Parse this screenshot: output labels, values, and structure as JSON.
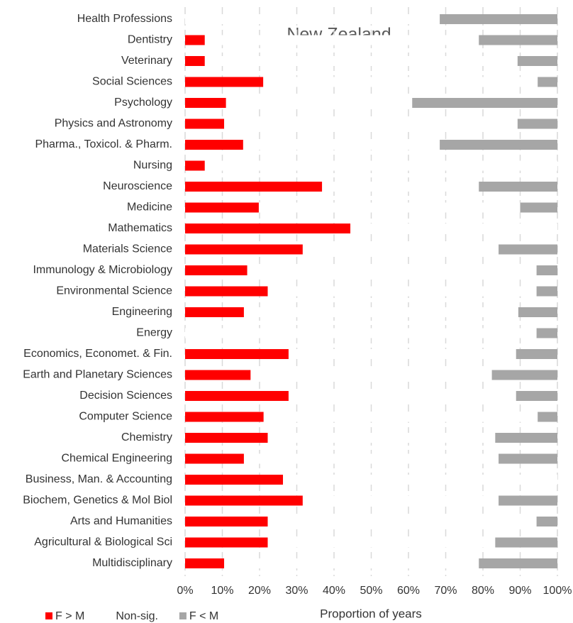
{
  "chart_data": {
    "type": "stacked_hbar",
    "title": "New Zealand",
    "x_label": "Proportion of years",
    "categories": [
      "Health Professions",
      "Dentistry",
      "Veterinary",
      "Social Sciences",
      "Psychology",
      "Physics and Astronomy",
      "Pharma., Toxicol. & Pharm.",
      "Nursing",
      "Neuroscience",
      "Medicine",
      "Mathematics",
      "Materials Science",
      "Immunology & Microbiology",
      "Environmental Science",
      "Engineering",
      "Energy",
      "Economics, Economet. & Fin.",
      "Earth and Planetary Sciences",
      "Decision Sciences",
      "Computer Science",
      "Chemistry",
      "Chemical Engineering",
      "Business, Man. & Accounting",
      "Biochem, Genetics & Mol Biol",
      "Arts and Humanities",
      "Agricultural & Biological Sci",
      "Multidisciplinary"
    ],
    "series": [
      {
        "name": "F > M",
        "color": "#ff0000",
        "values": [
          0,
          5.3,
          5.3,
          21.0,
          11.0,
          10.5,
          15.6,
          5.3,
          36.8,
          19.8,
          44.4,
          31.6,
          16.7,
          22.2,
          15.8,
          0,
          27.8,
          17.6,
          27.8,
          21.1,
          22.2,
          15.8,
          26.3,
          31.6,
          22.2,
          22.2,
          10.5
        ]
      },
      {
        "name": "Non-sig.",
        "color": "#ffffff",
        "values": [
          68.4,
          73.6,
          84.0,
          73.7,
          50.0,
          78.8,
          52.8,
          94.7,
          42.1,
          70.2,
          55.6,
          52.6,
          77.7,
          72.2,
          73.7,
          94.4,
          61.1,
          64.8,
          61.1,
          73.6,
          61.1,
          68.4,
          73.7,
          52.6,
          72.2,
          61.1,
          68.4
        ]
      },
      {
        "name": "F < M",
        "color": "#a6a6a6",
        "values": [
          31.6,
          21.1,
          10.7,
          5.3,
          39.0,
          10.7,
          31.6,
          0,
          21.1,
          10.0,
          0,
          15.8,
          5.6,
          5.6,
          10.5,
          5.6,
          11.1,
          17.6,
          11.1,
          5.3,
          16.7,
          15.8,
          0,
          15.8,
          5.6,
          16.7,
          21.1
        ]
      }
    ],
    "xlim": [
      0,
      100
    ],
    "xticks": [
      {
        "value": 0,
        "label": "0%"
      },
      {
        "value": 10,
        "label": "10%"
      },
      {
        "value": 20,
        "label": "20%"
      },
      {
        "value": 30,
        "label": "30%"
      },
      {
        "value": 40,
        "label": "40%"
      },
      {
        "value": 50,
        "label": "50%"
      },
      {
        "value": 60,
        "label": "60%"
      },
      {
        "value": 70,
        "label": "70%"
      },
      {
        "value": 80,
        "label": "80%"
      },
      {
        "value": 90,
        "label": "90%"
      },
      {
        "value": 100,
        "label": "100%"
      }
    ],
    "grid": true
  }
}
